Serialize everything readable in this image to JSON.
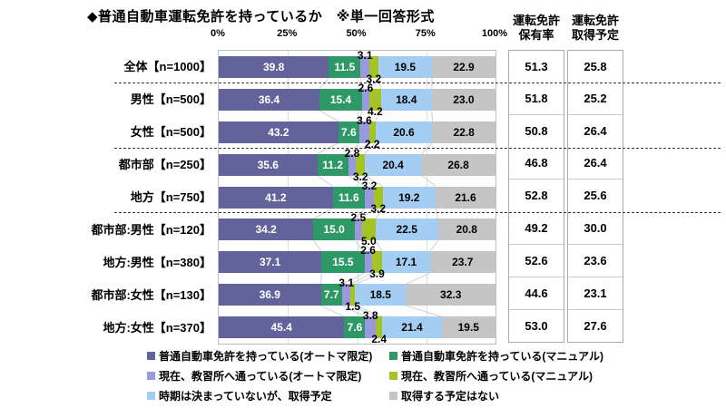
{
  "title": "◆普通自動車運転免許を持っているか　※単一回答形式",
  "columns": {
    "rate": {
      "line1": "運転免許",
      "line2": "保有率"
    },
    "plan": {
      "line1": "運転免許",
      "line2": "取得予定"
    }
  },
  "chart_data": {
    "type": "bar",
    "stacked": true,
    "orientation": "horizontal",
    "value_unit": "%",
    "xlim": [
      0,
      100
    ],
    "x_ticks": [
      "0%",
      "25%",
      "50%",
      "75%",
      "100%"
    ],
    "x_tick_positions": [
      0,
      25,
      50,
      75,
      100
    ],
    "grid": true,
    "legend_position": "bottom",
    "series": [
      {
        "name": "普通自動車免許を持っている(オートマ限定)",
        "color": "#62639B",
        "text_color": "#FFFFFF",
        "label_position": "inside"
      },
      {
        "name": "普通自動車免許を持っている(マニュアル)",
        "color": "#2E9967",
        "text_color": "#FFFFFF",
        "label_position": "inside"
      },
      {
        "name": "現在、教習所へ通っている(オートマ限定)",
        "color": "#9B99DE",
        "text_color": "#000000",
        "label_position": "above"
      },
      {
        "name": "現在、教習所へ通っている(マニュアル)",
        "color": "#A4C325",
        "text_color": "#000000",
        "label_position": "below"
      },
      {
        "name": "時期は決まっていないが、取得予定",
        "color": "#A3CDF2",
        "text_color": "#000000",
        "label_position": "inside"
      },
      {
        "name": "取得する予定はない",
        "color": "#C5C5C5",
        "text_color": "#000000",
        "label_position": "inside"
      }
    ],
    "rows": [
      {
        "category": "全体【n=1000】",
        "values": [
          39.8,
          11.5,
          3.1,
          3.2,
          19.5,
          22.9
        ],
        "license_rate": "51.3",
        "acquire_plan": "25.8"
      },
      {
        "category": "男性【n=500】",
        "values": [
          36.4,
          15.4,
          2.6,
          4.2,
          18.4,
          23.0
        ],
        "license_rate": "51.8",
        "acquire_plan": "25.2"
      },
      {
        "category": "女性【n=500】",
        "values": [
          43.2,
          7.6,
          3.6,
          2.2,
          20.6,
          22.8
        ],
        "license_rate": "50.8",
        "acquire_plan": "26.4"
      },
      {
        "category": "都市部【n=250】",
        "values": [
          35.6,
          11.2,
          2.8,
          3.2,
          20.4,
          26.8
        ],
        "license_rate": "46.8",
        "acquire_plan": "26.4"
      },
      {
        "category": "地方【n=750】",
        "values": [
          41.2,
          11.6,
          3.2,
          3.2,
          19.2,
          21.6
        ],
        "license_rate": "52.8",
        "acquire_plan": "25.6"
      },
      {
        "category": "都市部:男性【n=120】",
        "values": [
          34.2,
          15.0,
          2.5,
          5.0,
          22.5,
          20.8
        ],
        "license_rate": "49.2",
        "acquire_plan": "30.0"
      },
      {
        "category": "地方:男性【n=380】",
        "values": [
          37.1,
          15.5,
          2.6,
          3.9,
          17.1,
          23.7
        ],
        "license_rate": "52.6",
        "acquire_plan": "23.6"
      },
      {
        "category": "都市部:女性【n=130】",
        "values": [
          36.9,
          7.7,
          3.1,
          1.5,
          18.5,
          32.3
        ],
        "license_rate": "44.6",
        "acquire_plan": "23.1"
      },
      {
        "category": "地方:女性【n=370】",
        "values": [
          45.4,
          7.6,
          3.8,
          2.4,
          21.4,
          19.5
        ],
        "license_rate": "53.0",
        "acquire_plan": "27.6"
      }
    ],
    "group_breaks_after_row": [
      0,
      2,
      4
    ],
    "connector_line_color": "#CFCFCF",
    "gridline_color": "#DCDCDC"
  }
}
